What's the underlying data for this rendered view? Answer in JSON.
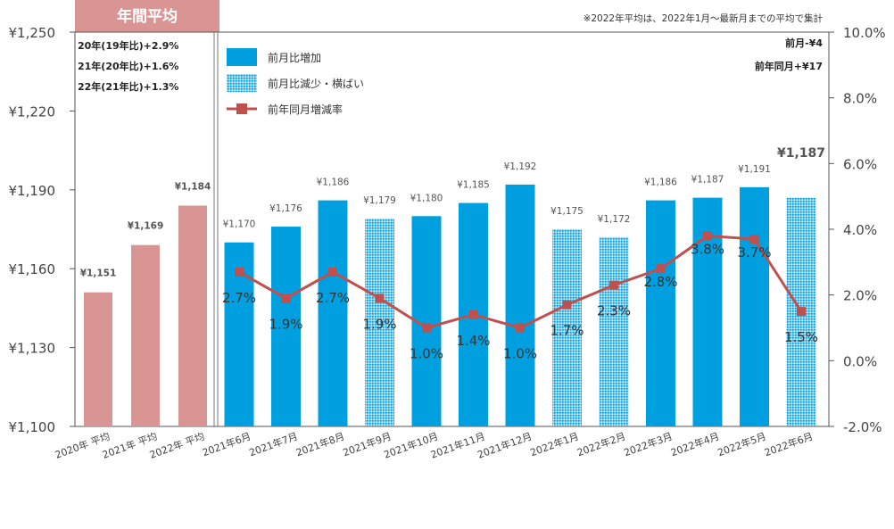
{
  "chart_data": {
    "type": "bar",
    "categories": [
      "2020年 平均",
      "2021年 平均",
      "2022年 平均",
      "2021年6月",
      "2021年7月",
      "2021年8月",
      "2021年9月",
      "2021年10月",
      "2021年11月",
      "2021年12月",
      "2022年1月",
      "2022年2月",
      "2022年3月",
      "2022年4月",
      "2022年5月",
      "2022年6月"
    ],
    "values": [
      1151,
      1169,
      1184,
      1170,
      1176,
      1186,
      1179,
      1180,
      1185,
      1192,
      1175,
      1172,
      1186,
      1187,
      1191,
      1187
    ],
    "value_labels": [
      "¥1,151",
      "¥1,169",
      "¥1,184",
      "¥1,170",
      "¥1,176",
      "¥1,186",
      "¥1,179",
      "¥1,180",
      "¥1,185",
      "¥1,192",
      "¥1,175",
      "¥1,172",
      "¥1,186",
      "¥1,187",
      "¥1,191",
      "¥1,187"
    ],
    "bar_kinds": [
      "average",
      "average",
      "average",
      "increase",
      "increase",
      "increase",
      "decrease",
      "increase",
      "increase",
      "increase",
      "decrease",
      "decrease",
      "increase",
      "increase",
      "increase",
      "decrease"
    ],
    "line_series": {
      "name": "前年同月増減率",
      "values": [
        null,
        null,
        null,
        2.7,
        1.9,
        2.7,
        1.9,
        1.0,
        1.4,
        1.0,
        1.7,
        2.3,
        2.8,
        3.8,
        3.7,
        1.5
      ],
      "labels": [
        "",
        "",
        "",
        "2.7%",
        "1.9%",
        "2.7%",
        "1.9%",
        "1.0%",
        "1.4%",
        "1.0%",
        "1.7%",
        "2.3%",
        "2.8%",
        "3.8%",
        "3.7%",
        "1.5%"
      ]
    },
    "ylim": [
      1100,
      1250
    ],
    "y_ticks": [
      "¥1,100",
      "¥1,130",
      "¥1,160",
      "¥1,190",
      "¥1,220",
      "¥1,250"
    ],
    "y2lim": [
      -2.0,
      10.0
    ],
    "y2_ticks": [
      "-2.0%",
      "0.0%",
      "2.0%",
      "4.0%",
      "6.0%",
      "8.0%",
      "10.0%"
    ],
    "legend": [
      "前月比増加",
      "前月比減少・横ばい",
      "前年同月増減率"
    ],
    "colors": {
      "average": "#d99594",
      "increase": "#00a0e0",
      "decrease_dot": "#00a0e0",
      "line": "#c0504d"
    }
  },
  "header": {
    "annual_avg_title": "年間平均"
  },
  "notes": {
    "footnote": "※2022年平均は、2022年1月～最新月までの平均で集計",
    "prev_month": "前月-¥4",
    "prev_year": "前年同月+¥17",
    "latest_value": "¥1,187"
  },
  "annual_changes": [
    "20年(19年比)+2.9%",
    "21年(20年比)+1.6%",
    "22年(21年比)+1.3%"
  ]
}
